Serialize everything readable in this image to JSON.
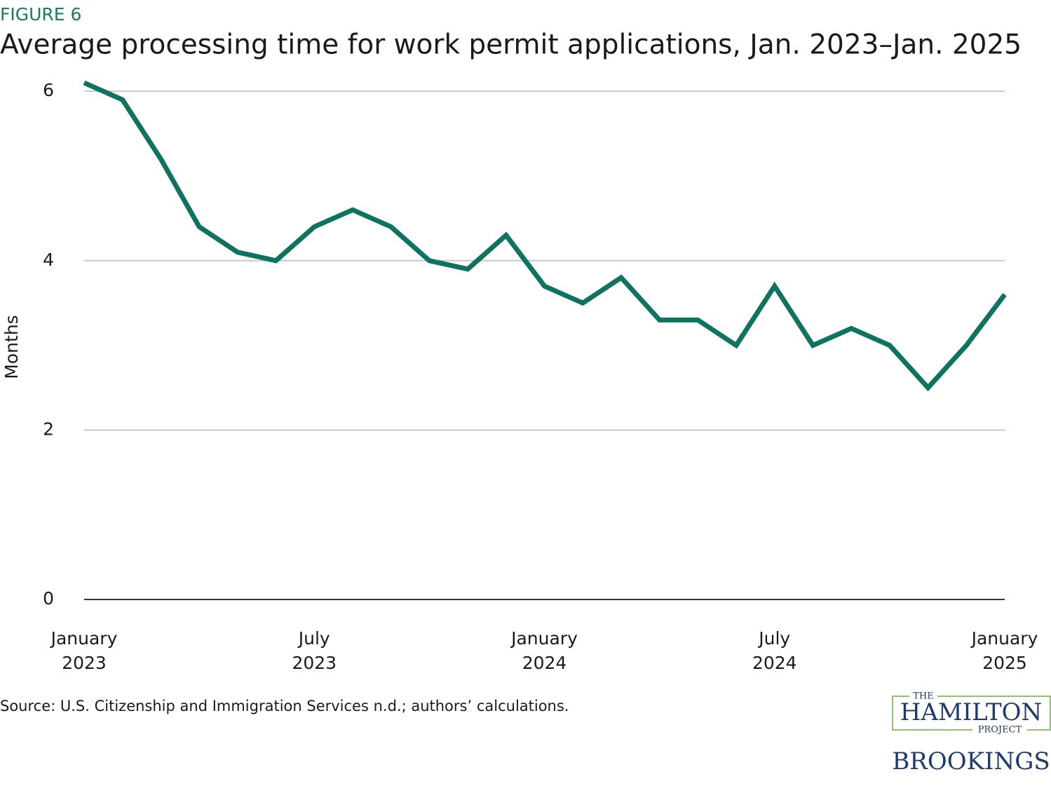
{
  "chart_data": {
    "type": "line",
    "figure_label": "FIGURE 6",
    "title": "Average processing time for work permit applications, Jan. 2023–Jan. 2025",
    "y_label": "Months",
    "source": "Source: U.S. Citizenship and Immigration Services n.d.; authors’ calculations.",
    "categories": [
      "January 2023",
      null,
      null,
      null,
      null,
      null,
      "July 2023",
      null,
      null,
      null,
      null,
      null,
      "January 2024",
      null,
      null,
      null,
      null,
      null,
      "July 2024",
      null,
      null,
      null,
      null,
      null,
      "January 2025"
    ],
    "series": [
      {
        "name": "Average processing time",
        "color": "#0e7360",
        "values": [
          6.1,
          5.9,
          5.2,
          4.4,
          4.1,
          4.0,
          4.4,
          4.6,
          4.4,
          4.0,
          3.9,
          4.3,
          3.7,
          3.5,
          3.8,
          3.3,
          3.3,
          3.0,
          3.7,
          3.0,
          3.2,
          3.0,
          2.5,
          3.0,
          3.6
        ]
      }
    ],
    "ylim": [
      0,
      6.2
    ],
    "yticks": [
      0,
      2,
      4,
      6
    ],
    "grid": true
  },
  "logos": {
    "hamilton_top": "THE",
    "hamilton": "HAMILTON",
    "hamilton_bottom": "PROJECT",
    "brookings": "BROOKINGS"
  }
}
